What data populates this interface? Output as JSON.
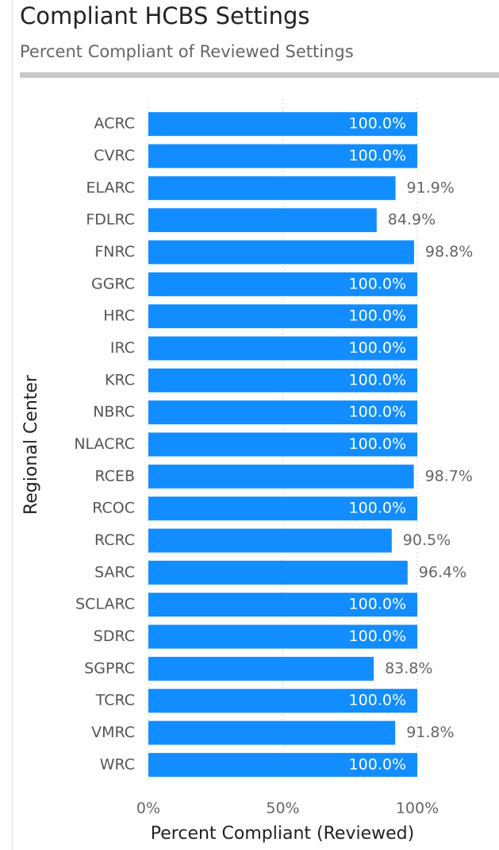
{
  "chart_data": {
    "type": "bar",
    "orientation": "horizontal",
    "title": "Compliant HCBS Settings",
    "subtitle": "Percent Compliant of Reviewed Settings",
    "xlabel": "Percent Compliant (Reviewed)",
    "ylabel": "Regional Center",
    "categories": [
      "ACRC",
      "CVRC",
      "ELARC",
      "FDLRC",
      "FNRC",
      "GGRC",
      "HRC",
      "IRC",
      "KRC",
      "NBRC",
      "NLACRC",
      "RCEB",
      "RCOC",
      "RCRC",
      "SARC",
      "SCLARC",
      "SDRC",
      "SGPRC",
      "TCRC",
      "VMRC",
      "WRC"
    ],
    "values": [
      100,
      100,
      91.9,
      84.9,
      98.8,
      100,
      100,
      100,
      100,
      100,
      100,
      98.7,
      100,
      90.5,
      96.4,
      100,
      100,
      83.8,
      100,
      91.8,
      100
    ],
    "value_labels": [
      "100.0%",
      "100.0%",
      "91.9%",
      "84.9%",
      "98.8%",
      "100.0%",
      "100.0%",
      "100.0%",
      "100.0%",
      "100.0%",
      "100.0%",
      "98.7%",
      "100.0%",
      "90.5%",
      "96.4%",
      "100.0%",
      "100.0%",
      "83.8%",
      "100.0%",
      "91.8%",
      "100.0%"
    ],
    "color": "#118dff",
    "xlim": [
      0,
      100
    ],
    "xticks": [
      {
        "value": 0,
        "label": "0%"
      },
      {
        "value": 50,
        "label": "50%"
      },
      {
        "value": 100,
        "label": "100%"
      }
    ],
    "grid": true
  }
}
